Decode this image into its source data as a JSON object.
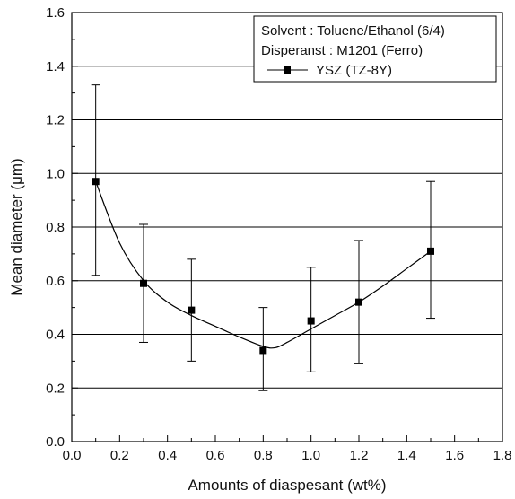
{
  "chart_data": {
    "type": "scatter",
    "xlabel": "Amounts of diaspesant (wt%)",
    "ylabel": "Mean diameter (μm)",
    "xlim": [
      0.0,
      1.8
    ],
    "ylim": [
      0.0,
      1.6
    ],
    "xticks": [
      0.0,
      0.2,
      0.4,
      0.6,
      0.8,
      1.0,
      1.2,
      1.4,
      1.6,
      1.8
    ],
    "yticks": [
      0.0,
      0.2,
      0.4,
      0.6,
      0.8,
      1.0,
      1.2,
      1.4,
      1.6
    ],
    "xtick_labels": [
      "0.0",
      "0.2",
      "0.4",
      "0.6",
      "0.8",
      "1.0",
      "1.2",
      "1.4",
      "1.6",
      "1.8"
    ],
    "ytick_labels": [
      "0.0",
      "0.2",
      "0.4",
      "0.6",
      "0.8",
      "1.0",
      "1.2",
      "1.4",
      "1.6"
    ],
    "grid": "horizontal",
    "legend_position": "top-right",
    "legend_lines": [
      "Solvent : Toluene/Ethanol (6/4)",
      "Disperanst : M1201 (Ferro)"
    ],
    "series": [
      {
        "name": "YSZ (TZ-8Y)",
        "marker": "square",
        "x": [
          0.1,
          0.3,
          0.5,
          0.8,
          1.0,
          1.2,
          1.5
        ],
        "y": [
          0.97,
          0.59,
          0.49,
          0.34,
          0.45,
          0.52,
          0.71
        ],
        "error_low": [
          0.62,
          0.37,
          0.3,
          0.19,
          0.26,
          0.29,
          0.46
        ],
        "error_high": [
          1.33,
          0.81,
          0.68,
          0.5,
          0.65,
          0.75,
          0.97
        ],
        "fit_curve": {
          "x": [
            0.1,
            0.2,
            0.3,
            0.4,
            0.5,
            0.6,
            0.7,
            0.8,
            0.85,
            0.9,
            1.0,
            1.1,
            1.2,
            1.3,
            1.4,
            1.5
          ],
          "y": [
            0.97,
            0.74,
            0.6,
            0.52,
            0.47,
            0.43,
            0.39,
            0.355,
            0.35,
            0.37,
            0.42,
            0.47,
            0.52,
            0.58,
            0.645,
            0.71
          ]
        }
      }
    ],
    "colors": {
      "line": "#000000",
      "grid": "#000000",
      "background": "#ffffff"
    }
  }
}
